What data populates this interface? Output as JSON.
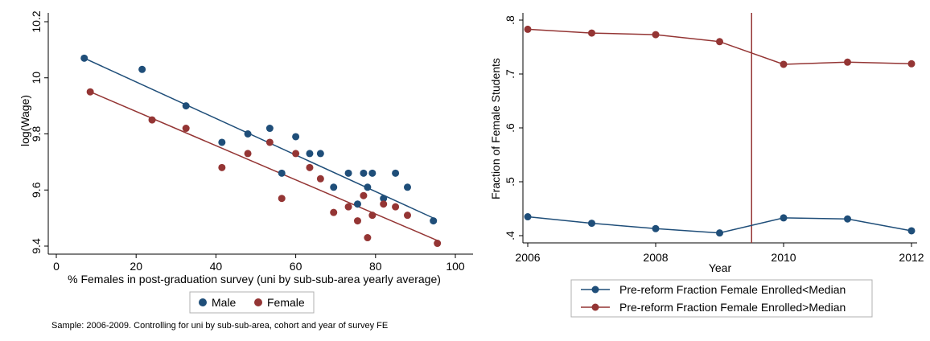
{
  "chart_data": [
    {
      "type": "scatter",
      "xlabel": "% Females in post-graduation survey (uni by sub-sub-area yearly average)",
      "ylabel": "log(Wage)",
      "xlim": [
        0,
        100
      ],
      "ylim": [
        9.4,
        10.2
      ],
      "xticks": [
        "0",
        "20",
        "40",
        "60",
        "80",
        "100"
      ],
      "yticks": [
        "9.4",
        "9.6",
        "9.8",
        "10",
        "10.2"
      ],
      "note": "Sample: 2006-2009. Controlling for uni by sub-sub-area, cohort and year of survey FE",
      "legend_position": "bottom",
      "series": [
        {
          "name": "Male",
          "color": "#1f4e79",
          "points": [
            [
              7,
              10.07
            ],
            [
              21.5,
              10.03
            ],
            [
              32.5,
              9.9
            ],
            [
              41.5,
              9.77
            ],
            [
              48,
              9.8
            ],
            [
              53.5,
              9.82
            ],
            [
              56.5,
              9.66
            ],
            [
              60,
              9.79
            ],
            [
              63.5,
              9.73
            ],
            [
              66.2,
              9.73
            ],
            [
              69.5,
              9.61
            ],
            [
              73.2,
              9.66
            ],
            [
              75.5,
              9.55
            ],
            [
              77,
              9.66
            ],
            [
              78,
              9.61
            ],
            [
              79.2,
              9.66
            ],
            [
              82,
              9.57
            ],
            [
              85,
              9.66
            ],
            [
              88,
              9.61
            ],
            [
              94.5,
              9.49
            ]
          ],
          "fit": [
            [
              7,
              10.07
            ],
            [
              94.5,
              9.5
            ]
          ]
        },
        {
          "name": "Female",
          "color": "#943534",
          "points": [
            [
              8.5,
              9.95
            ],
            [
              24,
              9.85
            ],
            [
              32.5,
              9.82
            ],
            [
              41.5,
              9.68
            ],
            [
              48,
              9.73
            ],
            [
              53.5,
              9.77
            ],
            [
              56.5,
              9.57
            ],
            [
              60,
              9.73
            ],
            [
              63.5,
              9.68
            ],
            [
              66.2,
              9.64
            ],
            [
              69.5,
              9.52
            ],
            [
              73.2,
              9.54
            ],
            [
              75.5,
              9.49
            ],
            [
              77,
              9.58
            ],
            [
              78,
              9.43
            ],
            [
              79.2,
              9.51
            ],
            [
              82,
              9.55
            ],
            [
              85,
              9.54
            ],
            [
              88,
              9.51
            ],
            [
              95.5,
              9.41
            ]
          ],
          "fit": [
            [
              8.5,
              9.95
            ],
            [
              95.5,
              9.42
            ]
          ]
        }
      ]
    },
    {
      "type": "line",
      "xlabel": "Year",
      "ylabel": "Fraction of Female Students",
      "xlim": [
        2006,
        2012
      ],
      "ylim": [
        0.4,
        0.8
      ],
      "xticks": [
        "2006",
        "2008",
        "2010",
        "2012"
      ],
      "yticks": [
        ".4",
        ".5",
        ".6",
        ".7",
        ".8"
      ],
      "vline": 2009.5,
      "vline_color": "#943534",
      "legend_position": "bottom",
      "series": [
        {
          "name": "Pre-reform Fraction Female Enrolled<Median",
          "color": "#1f4e79",
          "x": [
            2006,
            2007,
            2008,
            2009,
            2010,
            2011,
            2012
          ],
          "values": [
            0.435,
            0.423,
            0.413,
            0.405,
            0.433,
            0.431,
            0.409
          ]
        },
        {
          "name": "Pre-reform Fraction Female Enrolled>Median",
          "color": "#943534",
          "x": [
            2006,
            2007,
            2008,
            2009,
            2010,
            2011,
            2012
          ],
          "values": [
            0.783,
            0.776,
            0.773,
            0.76,
            0.718,
            0.722,
            0.719
          ]
        }
      ]
    }
  ]
}
